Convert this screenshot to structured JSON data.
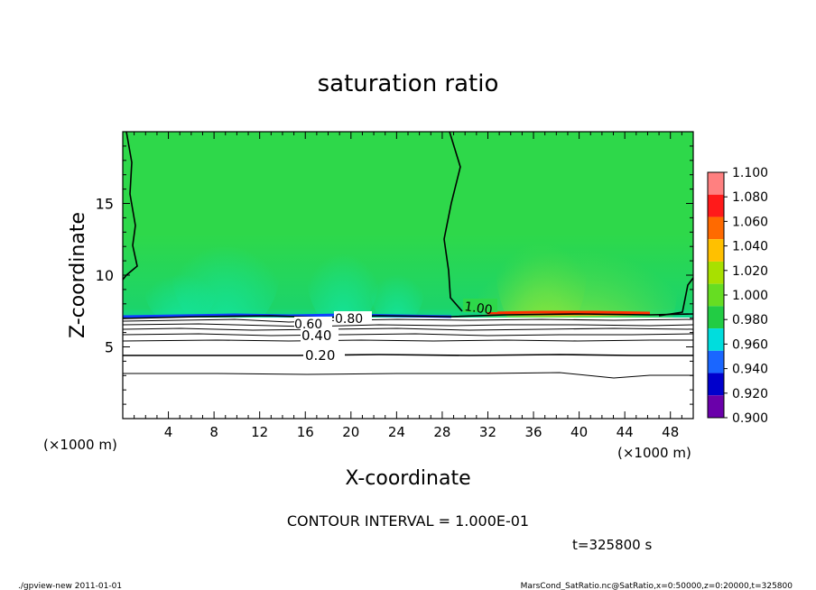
{
  "chart_data": {
    "type": "heatmap",
    "title": "saturation ratio",
    "xlabel": "X-coordinate",
    "ylabel": "Z-coordinate",
    "x_unit": "(×1000 m)",
    "xlim": [
      0,
      50
    ],
    "ylim": [
      0,
      20
    ],
    "x_ticks": [
      4,
      8,
      12,
      16,
      20,
      24,
      28,
      32,
      36,
      40,
      44,
      48
    ],
    "y_ticks": [
      5,
      10,
      15
    ],
    "colorbar": {
      "levels": [
        "1.100",
        "1.080",
        "1.060",
        "1.040",
        "1.020",
        "1.000",
        "0.980",
        "0.960",
        "0.940",
        "0.920",
        "0.900"
      ],
      "colors": [
        "#ff8080",
        "#ff1a1a",
        "#ff6a00",
        "#ffc000",
        "#a8e000",
        "#66dd22",
        "#22cc44",
        "#00dddd",
        "#1a66ff",
        "#0000cc",
        "#6a00aa"
      ]
    },
    "contour_labels": [
      "1.00",
      "0.80",
      "0.60",
      "0.40",
      "0.20"
    ],
    "contour_interval_text": "CONTOUR INTERVAL = 1.000E-01",
    "time_text": "t=325800 s"
  },
  "footer": {
    "left": "./gpview-new  2011-01-01",
    "right": "MarsCond_SatRatio.nc@SatRatio,x=0:50000,z=0:20000,t=325800"
  }
}
